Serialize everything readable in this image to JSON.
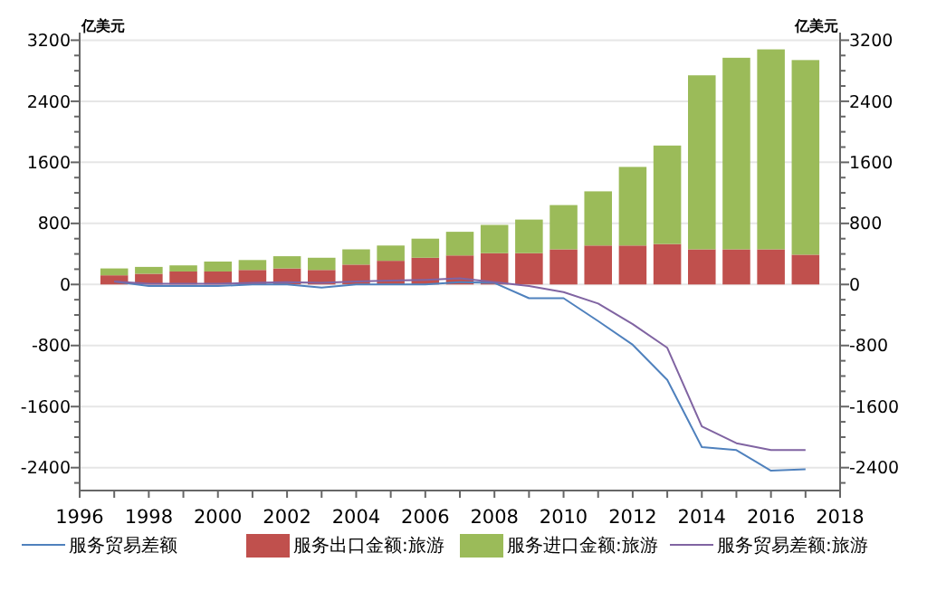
{
  "chart_data": {
    "type": "bar",
    "ylabel": "亿美元",
    "y2label": "亿美元",
    "stacked": true,
    "grid": "y",
    "legend": "bottom",
    "x": [
      1997,
      1998,
      1999,
      2000,
      2001,
      2002,
      2003,
      2004,
      2005,
      2006,
      2007,
      2008,
      2009,
      2010,
      2011,
      2012,
      2013,
      2014,
      2015,
      2016,
      2017
    ],
    "xlim": [
      1996,
      2018
    ],
    "xticks": [
      1996,
      {
        "value": 1997,
        "label": null
      },
      1998,
      {
        "value": 1999,
        "label": null
      },
      2000,
      {
        "value": 2001,
        "label": null
      },
      2002,
      {
        "value": 2003,
        "label": null
      },
      2004,
      {
        "value": 2005,
        "label": null
      },
      2006,
      {
        "value": 2007,
        "label": null
      },
      2008,
      {
        "value": 2009,
        "label": null
      },
      2010,
      {
        "value": 2011,
        "label": null
      },
      2012,
      {
        "value": 2013,
        "label": null
      },
      2014,
      {
        "value": 2015,
        "label": null
      },
      2016,
      {
        "value": 2017,
        "label": null
      },
      2018
    ],
    "ylim": [
      -2700,
      3300
    ],
    "yticks": [
      {
        "value": -2600,
        "label": null
      },
      -2400,
      {
        "value": -2200,
        "label": null
      },
      {
        "value": -2000,
        "label": null
      },
      {
        "value": -1800,
        "label": null
      },
      -1600,
      {
        "value": -1400,
        "label": null
      },
      {
        "value": -1200,
        "label": null
      },
      {
        "value": -1000,
        "label": null
      },
      -800,
      {
        "value": -600,
        "label": null
      },
      {
        "value": -400,
        "label": null
      },
      {
        "value": -200,
        "label": null
      },
      0,
      {
        "value": 200,
        "label": null
      },
      {
        "value": 400,
        "label": null
      },
      {
        "value": 600,
        "label": null
      },
      800,
      {
        "value": 1000,
        "label": null
      },
      {
        "value": 1200,
        "label": null
      },
      {
        "value": 1400,
        "label": null
      },
      1600,
      {
        "value": 1800,
        "label": null
      },
      {
        "value": 2000,
        "label": null
      },
      {
        "value": 2200,
        "label": null
      },
      2400,
      {
        "value": 2600,
        "label": null
      },
      {
        "value": 2800,
        "label": null
      },
      {
        "value": 3000,
        "label": null
      },
      3200
    ],
    "y2lim": [
      -2700,
      3300
    ],
    "y2ticks": [
      {
        "value": -2600,
        "label": null
      },
      -2400,
      {
        "value": -2200,
        "label": null
      },
      {
        "value": -2000,
        "label": null
      },
      {
        "value": -1800,
        "label": null
      },
      -1600,
      {
        "value": -1400,
        "label": null
      },
      {
        "value": -1200,
        "label": null
      },
      {
        "value": -1000,
        "label": null
      },
      -800,
      {
        "value": -600,
        "label": null
      },
      {
        "value": -400,
        "label": null
      },
      {
        "value": -200,
        "label": null
      },
      0,
      {
        "value": 200,
        "label": null
      },
      {
        "value": 400,
        "label": null
      },
      {
        "value": 600,
        "label": null
      },
      800,
      {
        "value": 1000,
        "label": null
      },
      {
        "value": 1200,
        "label": null
      },
      {
        "value": 1400,
        "label": null
      },
      1600,
      {
        "value": 1800,
        "label": null
      },
      {
        "value": 2000,
        "label": null
      },
      {
        "value": 2200,
        "label": null
      },
      2400,
      {
        "value": 2600,
        "label": null
      },
      {
        "value": 2800,
        "label": null
      },
      {
        "value": 3000,
        "label": null
      },
      3200
    ],
    "series": [
      {
        "name": "服务贸易差额",
        "type": "line",
        "color": "#4f81bd",
        "values": [
          40,
          -20,
          -20,
          -20,
          0,
          0,
          -40,
          0,
          0,
          0,
          30,
          20,
          -180,
          -180,
          -480,
          -790,
          -1250,
          -2130,
          -2170,
          -2440,
          -2420
        ]
      },
      {
        "name": "服务出口金额:旅游",
        "color": "#c0504d",
        "values": [
          120,
          140,
          170,
          170,
          190,
          210,
          190,
          260,
          310,
          350,
          380,
          410,
          410,
          460,
          510,
          510,
          530,
          460,
          460,
          460,
          390
        ]
      },
      {
        "name": "服务进口金额:旅游",
        "color": "#9bbb59",
        "values": [
          90,
          90,
          80,
          130,
          130,
          160,
          160,
          200,
          200,
          250,
          310,
          370,
          440,
          580,
          710,
          1030,
          1290,
          2280,
          2510,
          2620,
          2550
        ]
      },
      {
        "name": "服务贸易差额:旅游",
        "type": "line",
        "color": "#8064a2",
        "values": [
          40,
          10,
          10,
          10,
          20,
          30,
          20,
          40,
          50,
          60,
          80,
          30,
          -20,
          -100,
          -250,
          -520,
          -830,
          -1860,
          -2080,
          -2170,
          -2170
        ]
      }
    ]
  }
}
